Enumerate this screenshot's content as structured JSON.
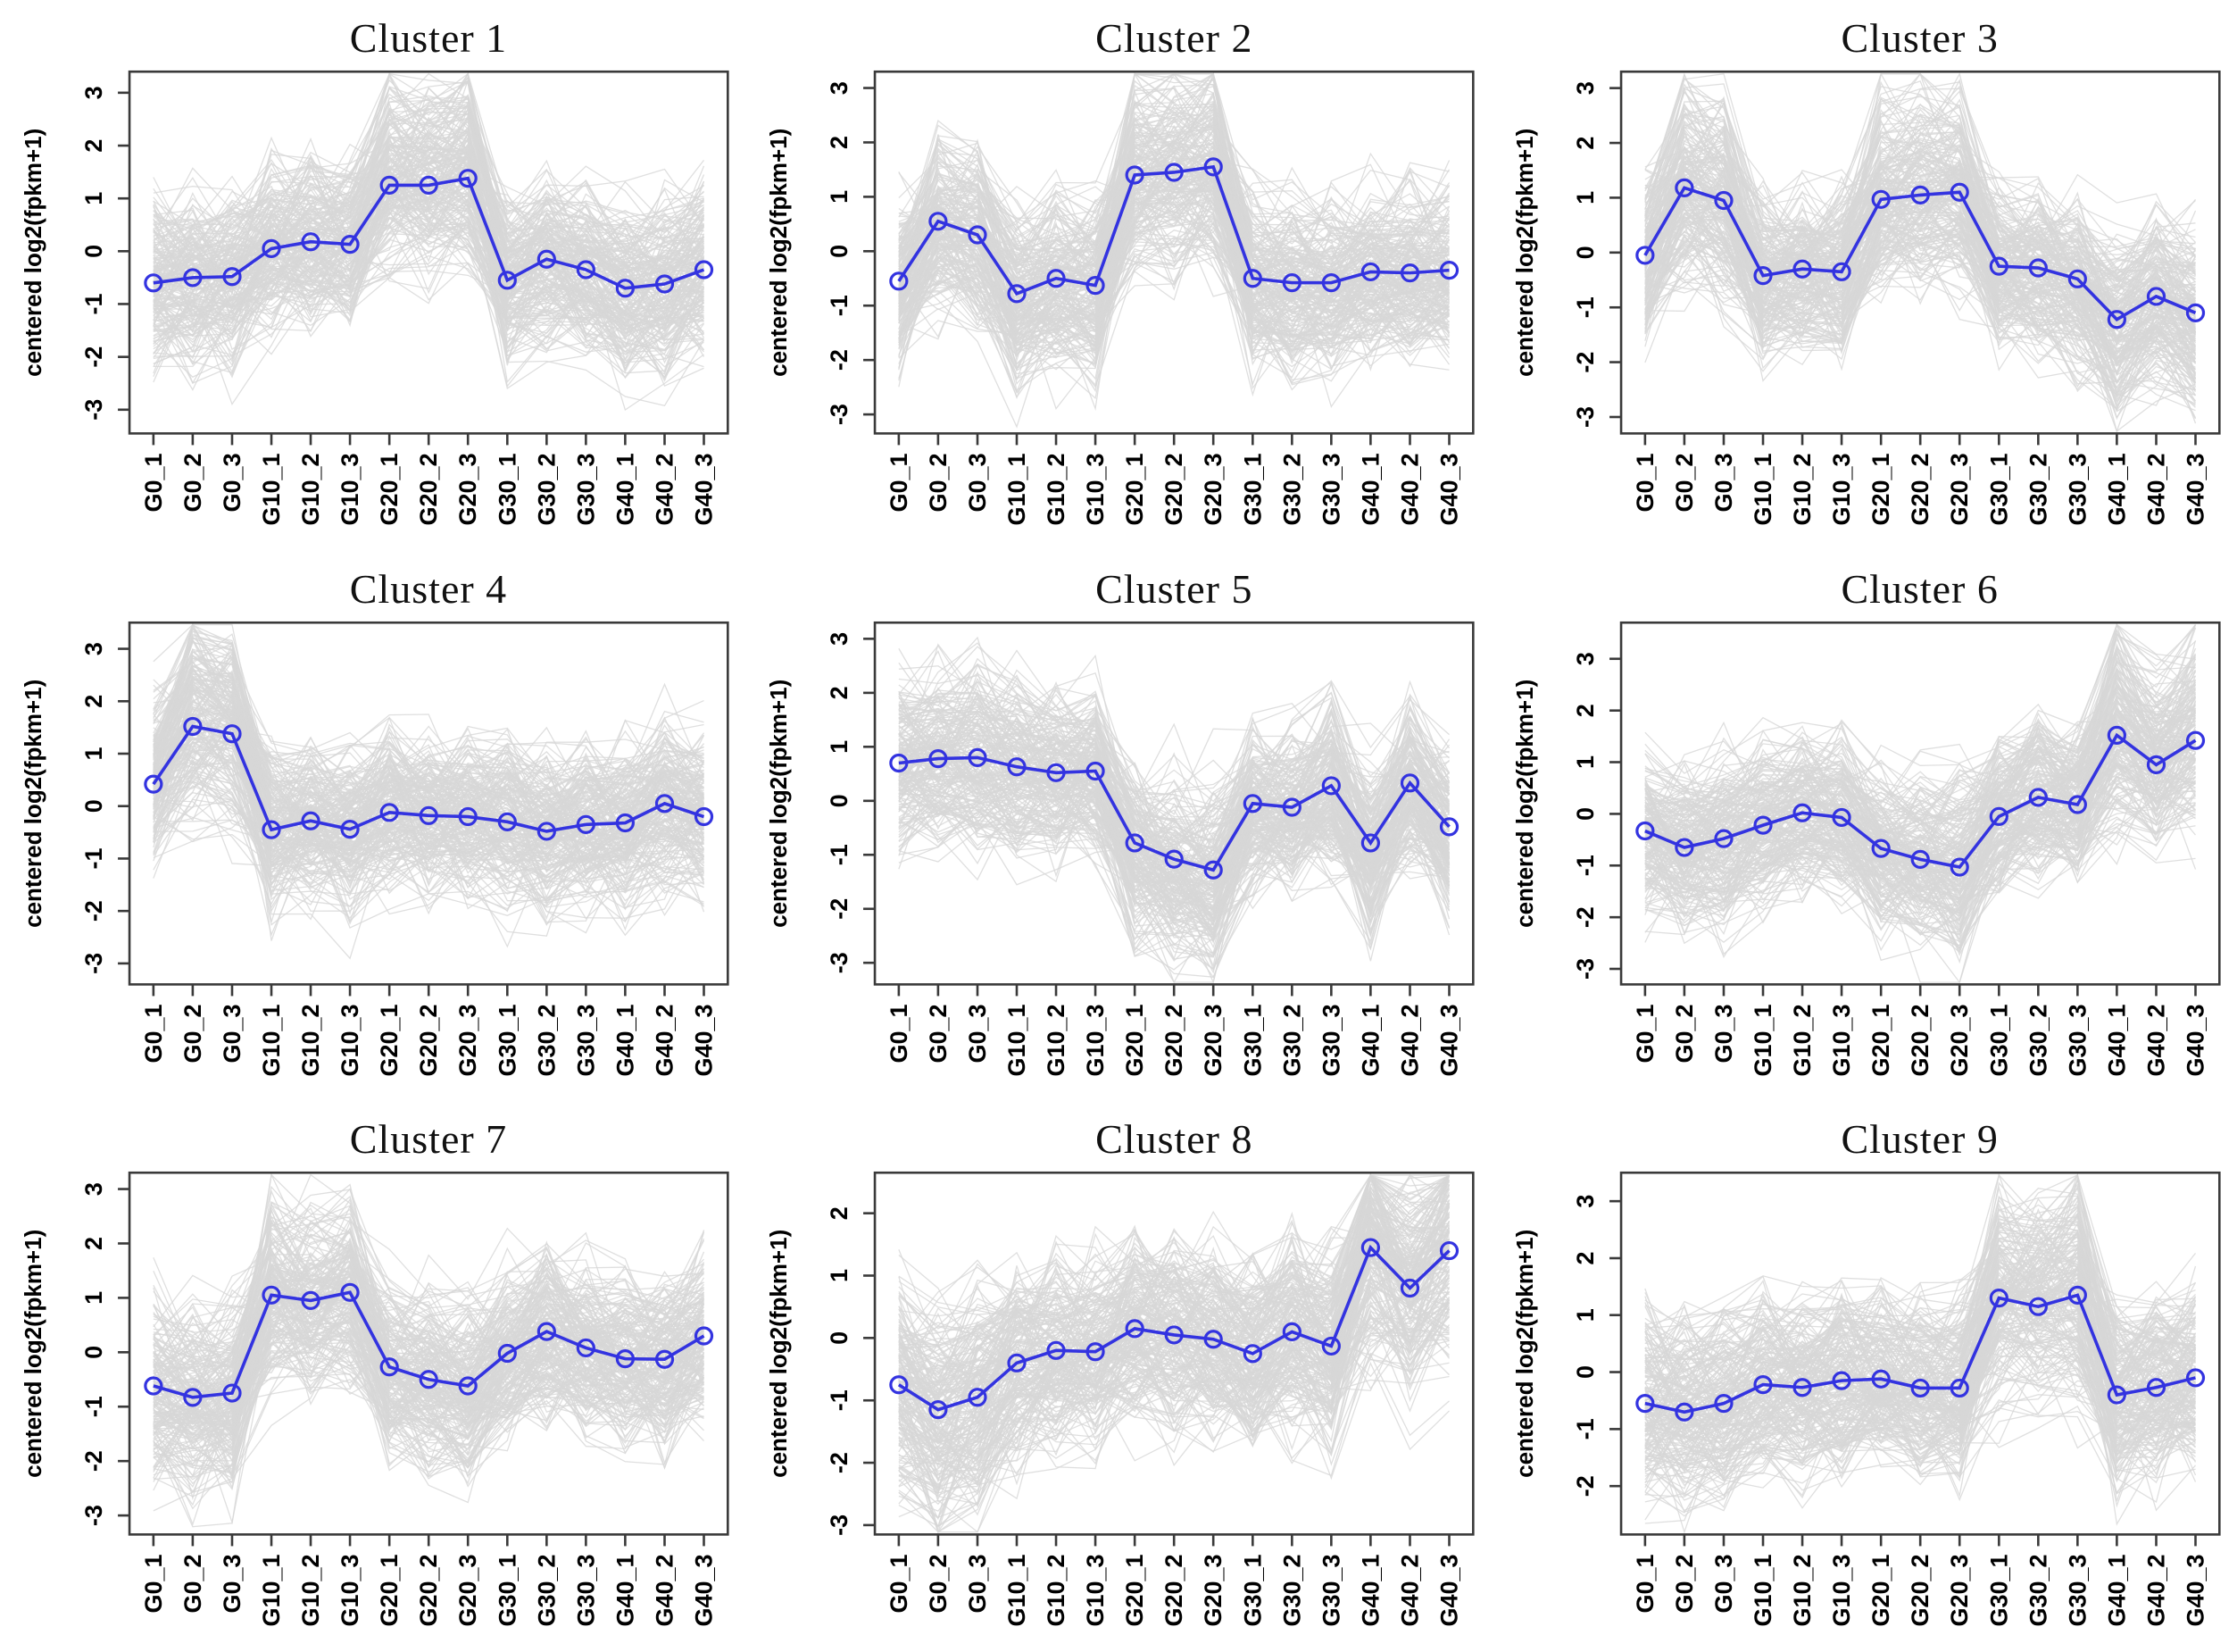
{
  "figure": {
    "description": "3x3 grid of gene co-expression cluster profile plots",
    "style": {
      "mean_line_color": "#3333E0",
      "gene_line_color": "#D7D7D7",
      "axis_color": "#3A3A3A",
      "background": "#FFFFFF"
    }
  },
  "chart_data": [
    {
      "type": "line",
      "title": "Cluster 1",
      "ylabel": "centered log2(fpkm+1)",
      "categories": [
        "G0_1",
        "G0_2",
        "G0_3",
        "G10_1",
        "G10_2",
        "G10_3",
        "G20_1",
        "G20_2",
        "G20_3",
        "G30_1",
        "G30_2",
        "G30_3",
        "G40_1",
        "G40_2",
        "G40_3"
      ],
      "series": [
        {
          "name": "cluster mean profile",
          "values": [
            -0.6,
            -0.5,
            -0.48,
            0.05,
            0.18,
            0.13,
            1.25,
            1.25,
            1.38,
            -0.55,
            -0.15,
            -0.35,
            -0.7,
            -0.62,
            -0.35
          ]
        },
        {
          "name": "individual gene profiles",
          "note": "gray background cloud of many gene lines"
        }
      ],
      "yticks": [
        -3,
        -2,
        -1,
        0,
        1,
        2,
        3
      ],
      "ylim": [
        -3.45,
        3.4
      ],
      "grid": false,
      "legend": false
    },
    {
      "type": "line",
      "title": "Cluster 2",
      "ylabel": "centered log2(fpkm+1)",
      "categories": [
        "G0_1",
        "G0_2",
        "G0_3",
        "G10_1",
        "G10_2",
        "G10_3",
        "G20_1",
        "G20_2",
        "G20_3",
        "G30_1",
        "G30_2",
        "G30_3",
        "G40_1",
        "G40_2",
        "G40_3"
      ],
      "series": [
        {
          "name": "cluster mean profile",
          "values": [
            -0.55,
            0.55,
            0.3,
            -0.78,
            -0.5,
            -0.63,
            1.4,
            1.45,
            1.55,
            -0.5,
            -0.58,
            -0.58,
            -0.38,
            -0.4,
            -0.35
          ]
        },
        {
          "name": "individual gene profiles",
          "note": "gray background cloud of many gene lines"
        }
      ],
      "yticks": [
        -3,
        -2,
        -1,
        0,
        1,
        2,
        3
      ],
      "ylim": [
        -3.35,
        3.3
      ],
      "grid": false,
      "legend": false
    },
    {
      "type": "line",
      "title": "Cluster 3",
      "ylabel": "centered log2(fpkm+1)",
      "categories": [
        "G0_1",
        "G0_2",
        "G0_3",
        "G10_1",
        "G10_2",
        "G10_3",
        "G20_1",
        "G20_2",
        "G20_3",
        "G30_1",
        "G30_2",
        "G30_3",
        "G40_1",
        "G40_2",
        "G40_3"
      ],
      "series": [
        {
          "name": "cluster mean profile",
          "values": [
            -0.05,
            1.18,
            0.95,
            -0.42,
            -0.3,
            -0.35,
            0.97,
            1.05,
            1.1,
            -0.25,
            -0.28,
            -0.48,
            -1.22,
            -0.8,
            -1.1
          ]
        },
        {
          "name": "individual gene profiles",
          "note": "gray background cloud of many gene lines"
        }
      ],
      "yticks": [
        -3,
        -2,
        -1,
        0,
        1,
        2,
        3
      ],
      "ylim": [
        -3.3,
        3.3
      ],
      "grid": false,
      "legend": false
    },
    {
      "type": "line",
      "title": "Cluster 4",
      "ylabel": "centered log2(fpkm+1)",
      "categories": [
        "G0_1",
        "G0_2",
        "G0_3",
        "G10_1",
        "G10_2",
        "G10_3",
        "G20_1",
        "G20_2",
        "G20_3",
        "G30_1",
        "G30_2",
        "G30_3",
        "G40_1",
        "G40_2",
        "G40_3"
      ],
      "series": [
        {
          "name": "cluster mean profile",
          "values": [
            0.42,
            1.52,
            1.38,
            -0.45,
            -0.28,
            -0.44,
            -0.12,
            -0.18,
            -0.2,
            -0.3,
            -0.48,
            -0.35,
            -0.32,
            0.05,
            -0.2
          ]
        },
        {
          "name": "individual gene profiles",
          "note": "gray background cloud of many gene lines"
        }
      ],
      "yticks": [
        -3,
        -2,
        -1,
        0,
        1,
        2,
        3
      ],
      "ylim": [
        -3.4,
        3.5
      ],
      "grid": false,
      "legend": false
    },
    {
      "type": "line",
      "title": "Cluster 5",
      "ylabel": "centered log2(fpkm+1)",
      "categories": [
        "G0_1",
        "G0_2",
        "G0_3",
        "G10_1",
        "G10_2",
        "G10_3",
        "G20_1",
        "G20_2",
        "G20_3",
        "G30_1",
        "G30_2",
        "G30_3",
        "G40_1",
        "G40_2",
        "G40_3"
      ],
      "series": [
        {
          "name": "cluster mean profile",
          "values": [
            0.7,
            0.78,
            0.8,
            0.63,
            0.52,
            0.55,
            -0.78,
            -1.08,
            -1.28,
            -0.05,
            -0.12,
            0.28,
            -0.78,
            0.33,
            -0.48
          ]
        },
        {
          "name": "individual gene profiles",
          "note": "gray background cloud of many gene lines"
        }
      ],
      "yticks": [
        -3,
        -2,
        -1,
        0,
        1,
        2,
        3
      ],
      "ylim": [
        -3.4,
        3.3
      ],
      "grid": false,
      "legend": false
    },
    {
      "type": "line",
      "title": "Cluster 6",
      "ylabel": "centered log2(fpkm+1)",
      "categories": [
        "G0_1",
        "G0_2",
        "G0_3",
        "G10_1",
        "G10_2",
        "G10_3",
        "G20_1",
        "G20_2",
        "G20_3",
        "G30_1",
        "G30_2",
        "G30_3",
        "G40_1",
        "G40_2",
        "G40_3"
      ],
      "series": [
        {
          "name": "cluster mean profile",
          "values": [
            -0.33,
            -0.65,
            -0.48,
            -0.22,
            0.02,
            -0.07,
            -0.67,
            -0.88,
            -1.03,
            -0.05,
            0.32,
            0.18,
            1.52,
            0.95,
            1.42
          ]
        },
        {
          "name": "individual gene profiles",
          "note": "gray background cloud of many gene lines"
        }
      ],
      "yticks": [
        -3,
        -2,
        -1,
        0,
        1,
        2,
        3
      ],
      "ylim": [
        -3.3,
        3.7
      ],
      "grid": false,
      "legend": false
    },
    {
      "type": "line",
      "title": "Cluster 7",
      "ylabel": "centered log2(fpkm+1)",
      "categories": [
        "G0_1",
        "G0_2",
        "G0_3",
        "G10_1",
        "G10_2",
        "G10_3",
        "G20_1",
        "G20_2",
        "G20_3",
        "G30_1",
        "G30_2",
        "G30_3",
        "G40_1",
        "G40_2",
        "G40_3"
      ],
      "series": [
        {
          "name": "cluster mean profile",
          "values": [
            -0.62,
            -0.83,
            -0.75,
            1.05,
            0.95,
            1.1,
            -0.27,
            -0.5,
            -0.62,
            -0.02,
            0.38,
            0.08,
            -0.12,
            -0.13,
            0.3
          ]
        },
        {
          "name": "individual gene profiles",
          "note": "gray background cloud of many gene lines"
        }
      ],
      "yticks": [
        -3,
        -2,
        -1,
        0,
        1,
        2,
        3
      ],
      "ylim": [
        -3.35,
        3.3
      ],
      "grid": false,
      "legend": false
    },
    {
      "type": "line",
      "title": "Cluster 8",
      "ylabel": "centered log2(fpkm+1)",
      "categories": [
        "G0_1",
        "G0_2",
        "G0_3",
        "G10_1",
        "G10_2",
        "G10_3",
        "G20_1",
        "G20_2",
        "G20_3",
        "G30_1",
        "G30_2",
        "G30_3",
        "G40_1",
        "G40_2",
        "G40_3"
      ],
      "series": [
        {
          "name": "cluster mean profile",
          "values": [
            -0.75,
            -1.15,
            -0.95,
            -0.4,
            -0.2,
            -0.22,
            0.15,
            0.05,
            -0.02,
            -0.25,
            0.1,
            -0.13,
            1.45,
            0.8,
            1.4
          ]
        },
        {
          "name": "individual gene profiles",
          "note": "gray background cloud of many gene lines"
        }
      ],
      "yticks": [
        -3,
        -2,
        -1,
        0,
        1,
        2
      ],
      "ylim": [
        -3.15,
        2.65
      ],
      "grid": false,
      "legend": false
    },
    {
      "type": "line",
      "title": "Cluster 9",
      "ylabel": "centered log2(fpkm+1)",
      "categories": [
        "G0_1",
        "G0_2",
        "G0_3",
        "G10_1",
        "G10_2",
        "G10_3",
        "G20_1",
        "G20_2",
        "G20_3",
        "G30_1",
        "G30_2",
        "G30_3",
        "G40_1",
        "G40_2",
        "G40_3"
      ],
      "series": [
        {
          "name": "cluster mean profile",
          "values": [
            -0.55,
            -0.7,
            -0.55,
            -0.22,
            -0.27,
            -0.15,
            -0.12,
            -0.28,
            -0.28,
            1.3,
            1.15,
            1.35,
            -0.4,
            -0.27,
            -0.1
          ]
        },
        {
          "name": "individual gene profiles",
          "note": "gray background cloud of many gene lines"
        }
      ],
      "yticks": [
        -2,
        -1,
        0,
        1,
        2,
        3
      ],
      "ylim": [
        -2.85,
        3.5
      ],
      "grid": false,
      "legend": false
    }
  ]
}
